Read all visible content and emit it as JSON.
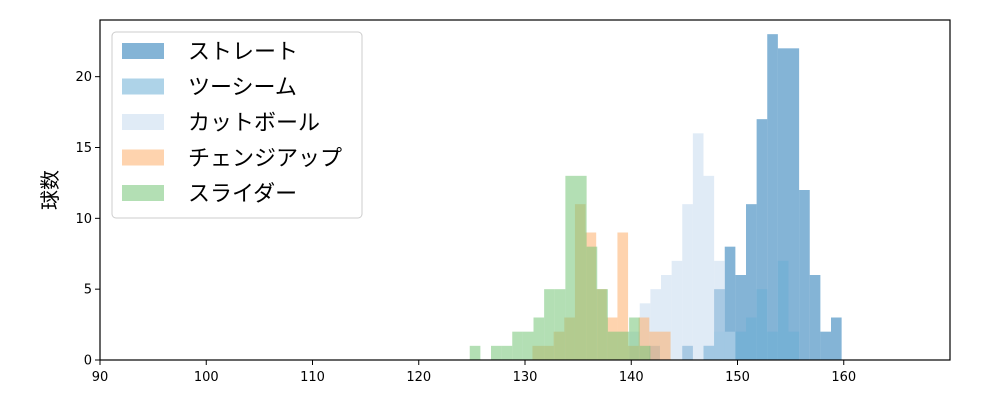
{
  "chart_data": {
    "type": "histogram",
    "title": "",
    "xlabel": "",
    "ylabel": "球数",
    "xlim": [
      90,
      170
    ],
    "ylim": [
      0,
      24
    ],
    "x_ticks": [
      90,
      100,
      110,
      120,
      130,
      140,
      150,
      160
    ],
    "y_ticks": [
      0,
      5,
      10,
      15,
      20
    ],
    "grid": false,
    "legend_position": "top-left",
    "series": [
      {
        "name": "ストレート",
        "color": "#1f77b4",
        "bins": [
          {
            "x0": 141.7,
            "x1": 142.7,
            "count": 1
          },
          {
            "x0": 144.8,
            "x1": 145.8,
            "count": 1
          },
          {
            "x0": 146.8,
            "x1": 147.8,
            "count": 1
          },
          {
            "x0": 147.8,
            "x1": 148.8,
            "count": 5
          },
          {
            "x0": 148.8,
            "x1": 149.8,
            "count": 8
          },
          {
            "x0": 149.8,
            "x1": 150.8,
            "count": 6
          },
          {
            "x0": 150.8,
            "x1": 151.8,
            "count": 11
          },
          {
            "x0": 151.8,
            "x1": 152.8,
            "count": 17
          },
          {
            "x0": 152.8,
            "x1": 153.8,
            "count": 23
          },
          {
            "x0": 153.8,
            "x1": 154.8,
            "count": 22
          },
          {
            "x0": 154.8,
            "x1": 155.8,
            "count": 22
          },
          {
            "x0": 155.8,
            "x1": 156.8,
            "count": 12
          },
          {
            "x0": 156.8,
            "x1": 157.8,
            "count": 6
          },
          {
            "x0": 157.8,
            "x1": 158.8,
            "count": 2
          },
          {
            "x0": 158.8,
            "x1": 159.8,
            "count": 3
          }
        ]
      },
      {
        "name": "ツーシーム",
        "color": "#6baed6",
        "bins": [
          {
            "x0": 146.8,
            "x1": 147.8,
            "count": 1
          },
          {
            "x0": 147.8,
            "x1": 148.8,
            "count": 2
          },
          {
            "x0": 148.8,
            "x1": 149.8,
            "count": 2
          },
          {
            "x0": 149.8,
            "x1": 150.8,
            "count": 2
          },
          {
            "x0": 150.8,
            "x1": 151.8,
            "count": 3
          },
          {
            "x0": 151.8,
            "x1": 152.8,
            "count": 5
          },
          {
            "x0": 152.8,
            "x1": 153.8,
            "count": 2
          },
          {
            "x0": 153.8,
            "x1": 154.8,
            "count": 7
          },
          {
            "x0": 154.8,
            "x1": 155.8,
            "count": 2
          }
        ]
      },
      {
        "name": "カットボール",
        "color": "#c6dbef",
        "bins": [
          {
            "x0": 139.8,
            "x1": 140.8,
            "count": 2
          },
          {
            "x0": 140.8,
            "x1": 141.8,
            "count": 4
          },
          {
            "x0": 141.8,
            "x1": 142.8,
            "count": 5
          },
          {
            "x0": 142.8,
            "x1": 143.8,
            "count": 6
          },
          {
            "x0": 143.8,
            "x1": 144.8,
            "count": 7
          },
          {
            "x0": 144.8,
            "x1": 145.8,
            "count": 11
          },
          {
            "x0": 145.8,
            "x1": 146.8,
            "count": 16
          },
          {
            "x0": 146.8,
            "x1": 147.8,
            "count": 13
          },
          {
            "x0": 147.8,
            "x1": 148.8,
            "count": 7
          },
          {
            "x0": 148.8,
            "x1": 149.8,
            "count": 2
          }
        ]
      },
      {
        "name": "チェンジアップ",
        "color": "#fdae6b",
        "bins": [
          {
            "x0": 130.7,
            "x1": 131.7,
            "count": 1
          },
          {
            "x0": 131.7,
            "x1": 132.7,
            "count": 1
          },
          {
            "x0": 132.7,
            "x1": 133.7,
            "count": 2
          },
          {
            "x0": 133.7,
            "x1": 134.7,
            "count": 3
          },
          {
            "x0": 134.7,
            "x1": 135.7,
            "count": 11
          },
          {
            "x0": 135.7,
            "x1": 136.7,
            "count": 9
          },
          {
            "x0": 136.7,
            "x1": 137.7,
            "count": 5
          },
          {
            "x0": 137.7,
            "x1": 138.7,
            "count": 3
          },
          {
            "x0": 138.7,
            "x1": 139.7,
            "count": 9
          },
          {
            "x0": 139.7,
            "x1": 140.7,
            "count": 1
          },
          {
            "x0": 140.7,
            "x1": 141.7,
            "count": 3
          },
          {
            "x0": 141.7,
            "x1": 142.7,
            "count": 2
          },
          {
            "x0": 142.7,
            "x1": 143.7,
            "count": 2
          }
        ]
      },
      {
        "name": "スライダー",
        "color": "#74c476",
        "bins": [
          {
            "x0": 124.8,
            "x1": 125.8,
            "count": 1
          },
          {
            "x0": 126.8,
            "x1": 127.8,
            "count": 1
          },
          {
            "x0": 127.8,
            "x1": 128.8,
            "count": 1
          },
          {
            "x0": 128.8,
            "x1": 129.8,
            "count": 2
          },
          {
            "x0": 129.8,
            "x1": 130.8,
            "count": 2
          },
          {
            "x0": 130.8,
            "x1": 131.8,
            "count": 3
          },
          {
            "x0": 131.8,
            "x1": 132.8,
            "count": 5
          },
          {
            "x0": 132.8,
            "x1": 133.8,
            "count": 5
          },
          {
            "x0": 133.8,
            "x1": 134.8,
            "count": 13
          },
          {
            "x0": 134.8,
            "x1": 135.8,
            "count": 13
          },
          {
            "x0": 135.8,
            "x1": 136.8,
            "count": 8
          },
          {
            "x0": 136.8,
            "x1": 137.8,
            "count": 5
          },
          {
            "x0": 137.8,
            "x1": 138.8,
            "count": 2
          },
          {
            "x0": 138.8,
            "x1": 139.8,
            "count": 2
          },
          {
            "x0": 139.8,
            "x1": 140.8,
            "count": 3
          },
          {
            "x0": 140.8,
            "x1": 141.8,
            "count": 1
          }
        ]
      }
    ]
  }
}
